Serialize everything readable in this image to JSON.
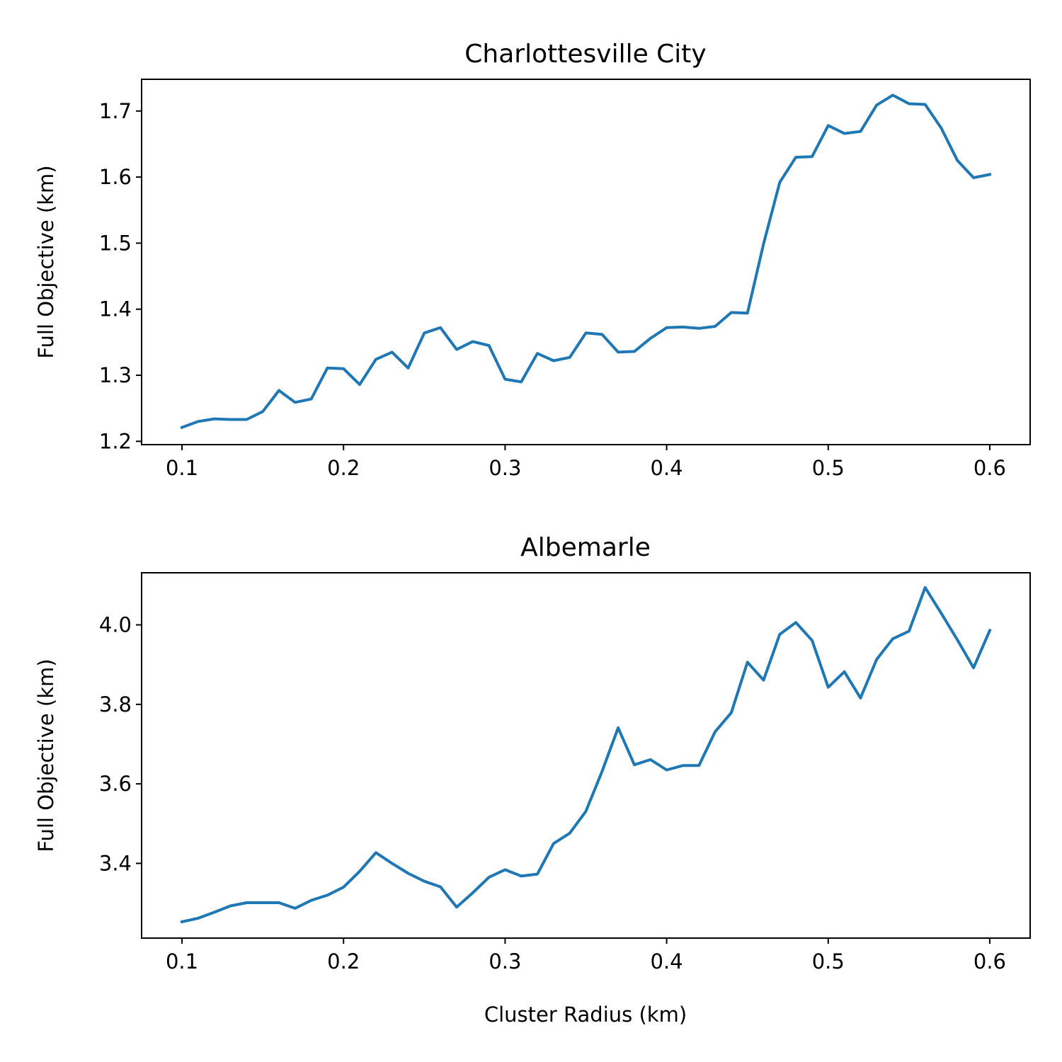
{
  "chart_data": [
    {
      "type": "line",
      "title": "Charlottesville City",
      "xlabel": "",
      "ylabel": "Full Objective (km)",
      "xlim": [
        0.075,
        0.625
      ],
      "ylim": [
        1.195,
        1.748
      ],
      "xticks": [
        0.1,
        0.2,
        0.3,
        0.4,
        0.5,
        0.6
      ],
      "xtick_labels": [
        "0.1",
        "0.2",
        "0.3",
        "0.4",
        "0.5",
        "0.6"
      ],
      "yticks": [
        1.2,
        1.3,
        1.4,
        1.5,
        1.6,
        1.7
      ],
      "ytick_labels": [
        "1.2",
        "1.3",
        "1.4",
        "1.5",
        "1.6",
        "1.7"
      ],
      "color": "#1f77b4",
      "grid": false,
      "x": [
        0.1,
        0.11,
        0.12,
        0.13,
        0.14,
        0.15,
        0.16,
        0.17,
        0.18,
        0.19,
        0.2,
        0.21,
        0.22,
        0.23,
        0.24,
        0.25,
        0.26,
        0.27,
        0.28,
        0.29,
        0.3,
        0.31,
        0.32,
        0.33,
        0.34,
        0.35,
        0.36,
        0.37,
        0.38,
        0.39,
        0.4,
        0.41,
        0.42,
        0.43,
        0.44,
        0.45,
        0.46,
        0.47,
        0.48,
        0.49,
        0.5,
        0.51,
        0.52,
        0.53,
        0.54,
        0.55,
        0.56,
        0.57,
        0.58,
        0.59,
        0.6
      ],
      "y": [
        1.221,
        1.23,
        1.234,
        1.233,
        1.233,
        1.245,
        1.277,
        1.259,
        1.264,
        1.311,
        1.31,
        1.286,
        1.324,
        1.335,
        1.311,
        1.364,
        1.372,
        1.339,
        1.351,
        1.345,
        1.294,
        1.29,
        1.333,
        1.322,
        1.327,
        1.364,
        1.362,
        1.335,
        1.336,
        1.356,
        1.372,
        1.373,
        1.371,
        1.374,
        1.395,
        1.394,
        1.499,
        1.592,
        1.63,
        1.631,
        1.678,
        1.666,
        1.669,
        1.709,
        1.724,
        1.711,
        1.71,
        1.674,
        1.625,
        1.599,
        1.604
      ]
    },
    {
      "type": "line",
      "title": "Albemarle",
      "xlabel": "Cluster Radius (km)",
      "ylabel": "Full Objective (km)",
      "xlim": [
        0.075,
        0.625
      ],
      "ylim": [
        3.212,
        4.131
      ],
      "xticks": [
        0.1,
        0.2,
        0.3,
        0.4,
        0.5,
        0.6
      ],
      "xtick_labels": [
        "0.1",
        "0.2",
        "0.3",
        "0.4",
        "0.5",
        "0.6"
      ],
      "yticks": [
        3.4,
        3.6,
        3.8,
        4.0
      ],
      "ytick_labels": [
        "3.4",
        "3.6",
        "3.8",
        "4.0"
      ],
      "color": "#1f77b4",
      "grid": false,
      "x": [
        0.1,
        0.11,
        0.12,
        0.13,
        0.14,
        0.15,
        0.16,
        0.17,
        0.18,
        0.19,
        0.2,
        0.21,
        0.22,
        0.23,
        0.24,
        0.25,
        0.26,
        0.27,
        0.28,
        0.29,
        0.3,
        0.31,
        0.32,
        0.33,
        0.34,
        0.35,
        0.36,
        0.37,
        0.38,
        0.39,
        0.4,
        0.41,
        0.42,
        0.43,
        0.44,
        0.45,
        0.46,
        0.47,
        0.48,
        0.49,
        0.5,
        0.51,
        0.52,
        0.53,
        0.54,
        0.55,
        0.56,
        0.57,
        0.58,
        0.59,
        0.6
      ],
      "y": [
        3.253,
        3.262,
        3.277,
        3.293,
        3.301,
        3.301,
        3.301,
        3.287,
        3.307,
        3.32,
        3.34,
        3.38,
        3.427,
        3.4,
        3.375,
        3.355,
        3.341,
        3.29,
        3.326,
        3.365,
        3.384,
        3.368,
        3.373,
        3.45,
        3.476,
        3.531,
        3.631,
        3.741,
        3.648,
        3.661,
        3.635,
        3.646,
        3.646,
        3.731,
        3.779,
        3.906,
        3.861,
        3.976,
        4.006,
        3.961,
        3.843,
        3.882,
        3.816,
        3.913,
        3.965,
        3.984,
        4.094,
        4.029,
        3.962,
        3.892,
        3.986
      ]
    }
  ]
}
